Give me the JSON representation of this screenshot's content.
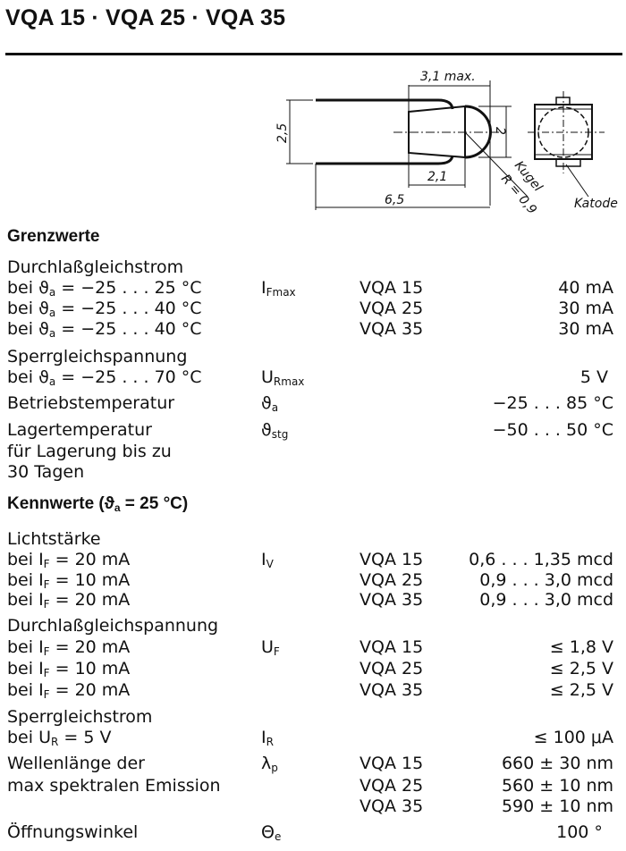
{
  "title": "VQA 15 · VQA 25 · VQA 35",
  "diagram": {
    "dim_length_body": "3,1 max.",
    "dim_height": "2,5",
    "dim_lens": "2",
    "dim_body": "2,1",
    "dim_total": "6,5",
    "ball_label": "Kugel",
    "radius_label": "R = 0,9",
    "cathode_label": "Katode"
  },
  "rows": [
    {
      "kind": "head",
      "label": [
        {
          "t": "Grenzwerte"
        }
      ]
    },
    {
      "label": [
        {
          "t": "Durchlaßgleichstrom"
        }
      ]
    },
    {
      "label": [
        {
          "t": "bei ϑ"
        },
        {
          "s": "a"
        },
        {
          "t": " = −25 . . . 25 °C"
        }
      ],
      "symbol": [
        {
          "t": "I"
        },
        {
          "s": "Fmax"
        }
      ],
      "type": "VQA 15",
      "value": "40 mA"
    },
    {
      "label": [
        {
          "t": "bei ϑ"
        },
        {
          "s": "a"
        },
        {
          "t": " = −25 . . . 40 °C"
        }
      ],
      "type": "VQA 25",
      "value": "30 mA"
    },
    {
      "label": [
        {
          "t": "bei ϑ"
        },
        {
          "s": "a"
        },
        {
          "t": " = −25 . . . 40 °C"
        }
      ],
      "type": "VQA 35",
      "value": "30 mA"
    },
    {
      "label": [
        {
          "t": "Sperrgleichspannung"
        }
      ]
    },
    {
      "label": [
        {
          "t": "bei ϑ"
        },
        {
          "s": "a"
        },
        {
          "t": " = −25 . . . 70 °C"
        }
      ],
      "symbol": [
        {
          "t": "U"
        },
        {
          "s": "Rmax"
        }
      ],
      "value": "5 V "
    },
    {
      "label": [
        {
          "t": "Betriebstemperatur"
        }
      ],
      "symbol": [
        {
          "t": "ϑ"
        },
        {
          "s": "a"
        }
      ],
      "value": "−25 . . . 85 °C"
    },
    {
      "label": [
        {
          "t": "Lagertemperatur"
        }
      ],
      "symbol": [
        {
          "t": "ϑ"
        },
        {
          "s": "stg"
        }
      ],
      "value": "−50 . . . 50 °C"
    },
    {
      "label": [
        {
          "t": "für Lagerung bis zu"
        }
      ]
    },
    {
      "label": [
        {
          "t": "30 Tagen"
        }
      ]
    },
    {
      "kind": "head",
      "label": [
        {
          "t": "Kennwerte (ϑ"
        },
        {
          "s": "a"
        },
        {
          "t": " = 25 °C)"
        }
      ]
    },
    {
      "label": [
        {
          "t": "Lichtstärke"
        }
      ]
    },
    {
      "label": [
        {
          "t": "bei I"
        },
        {
          "s": "F"
        },
        {
          "t": " = 20 mA"
        }
      ],
      "symbol": [
        {
          "t": "I"
        },
        {
          "s": "V"
        }
      ],
      "type": "VQA 15",
      "value": "0,6 . . . 1,35 mcd"
    },
    {
      "label": [
        {
          "t": "bei I"
        },
        {
          "s": "F"
        },
        {
          "t": " = 10 mA"
        }
      ],
      "type": "VQA 25",
      "value": "0,9 . . . 3,0 mcd"
    },
    {
      "label": [
        {
          "t": "bei I"
        },
        {
          "s": "F"
        },
        {
          "t": " = 20 mA"
        }
      ],
      "type": "VQA 35",
      "value": "0,9 . . . 3,0 mcd"
    },
    {
      "label": [
        {
          "t": "Durchlaßgleichspannung"
        }
      ]
    },
    {
      "label": [
        {
          "t": "bei I"
        },
        {
          "s": "F"
        },
        {
          "t": " = 20 mA"
        }
      ],
      "symbol": [
        {
          "t": "U"
        },
        {
          "s": "F"
        }
      ],
      "type": "VQA 15",
      "value": "≤ 1,8 V"
    },
    {
      "label": [
        {
          "t": "bei I"
        },
        {
          "s": "F"
        },
        {
          "t": " = 10 mA"
        }
      ],
      "type": "VQA 25",
      "value": "≤ 2,5 V"
    },
    {
      "label": [
        {
          "t": "bei I"
        },
        {
          "s": "F"
        },
        {
          "t": " = 20 mA"
        }
      ],
      "type": "VQA 35",
      "value": "≤ 2,5 V"
    },
    {
      "label": [
        {
          "t": "Sperrgleichstrom"
        }
      ]
    },
    {
      "label": [
        {
          "t": "bei U"
        },
        {
          "s": "R"
        },
        {
          "t": " = 5 V"
        }
      ],
      "symbol": [
        {
          "t": "I"
        },
        {
          "s": "R"
        }
      ],
      "value": "≤ 100 μA"
    },
    {
      "label": [
        {
          "t": "Wellenlänge der"
        }
      ],
      "symbol": [
        {
          "t": "λ"
        },
        {
          "s": "p"
        }
      ],
      "type": "VQA 15",
      "value": "660 ± 30 nm"
    },
    {
      "label": [
        {
          "t": "max spektralen Emission"
        }
      ],
      "type": "VQA 25",
      "value": "560 ± 10 nm"
    },
    {
      "label": [],
      "type": "VQA 35",
      "value": "590 ± 10 nm"
    },
    {
      "label": [
        {
          "t": "Öffnungswinkel"
        }
      ],
      "symbol": [
        {
          "t": "Θ"
        },
        {
          "s": "e"
        }
      ],
      "value": "100 °  "
    }
  ]
}
